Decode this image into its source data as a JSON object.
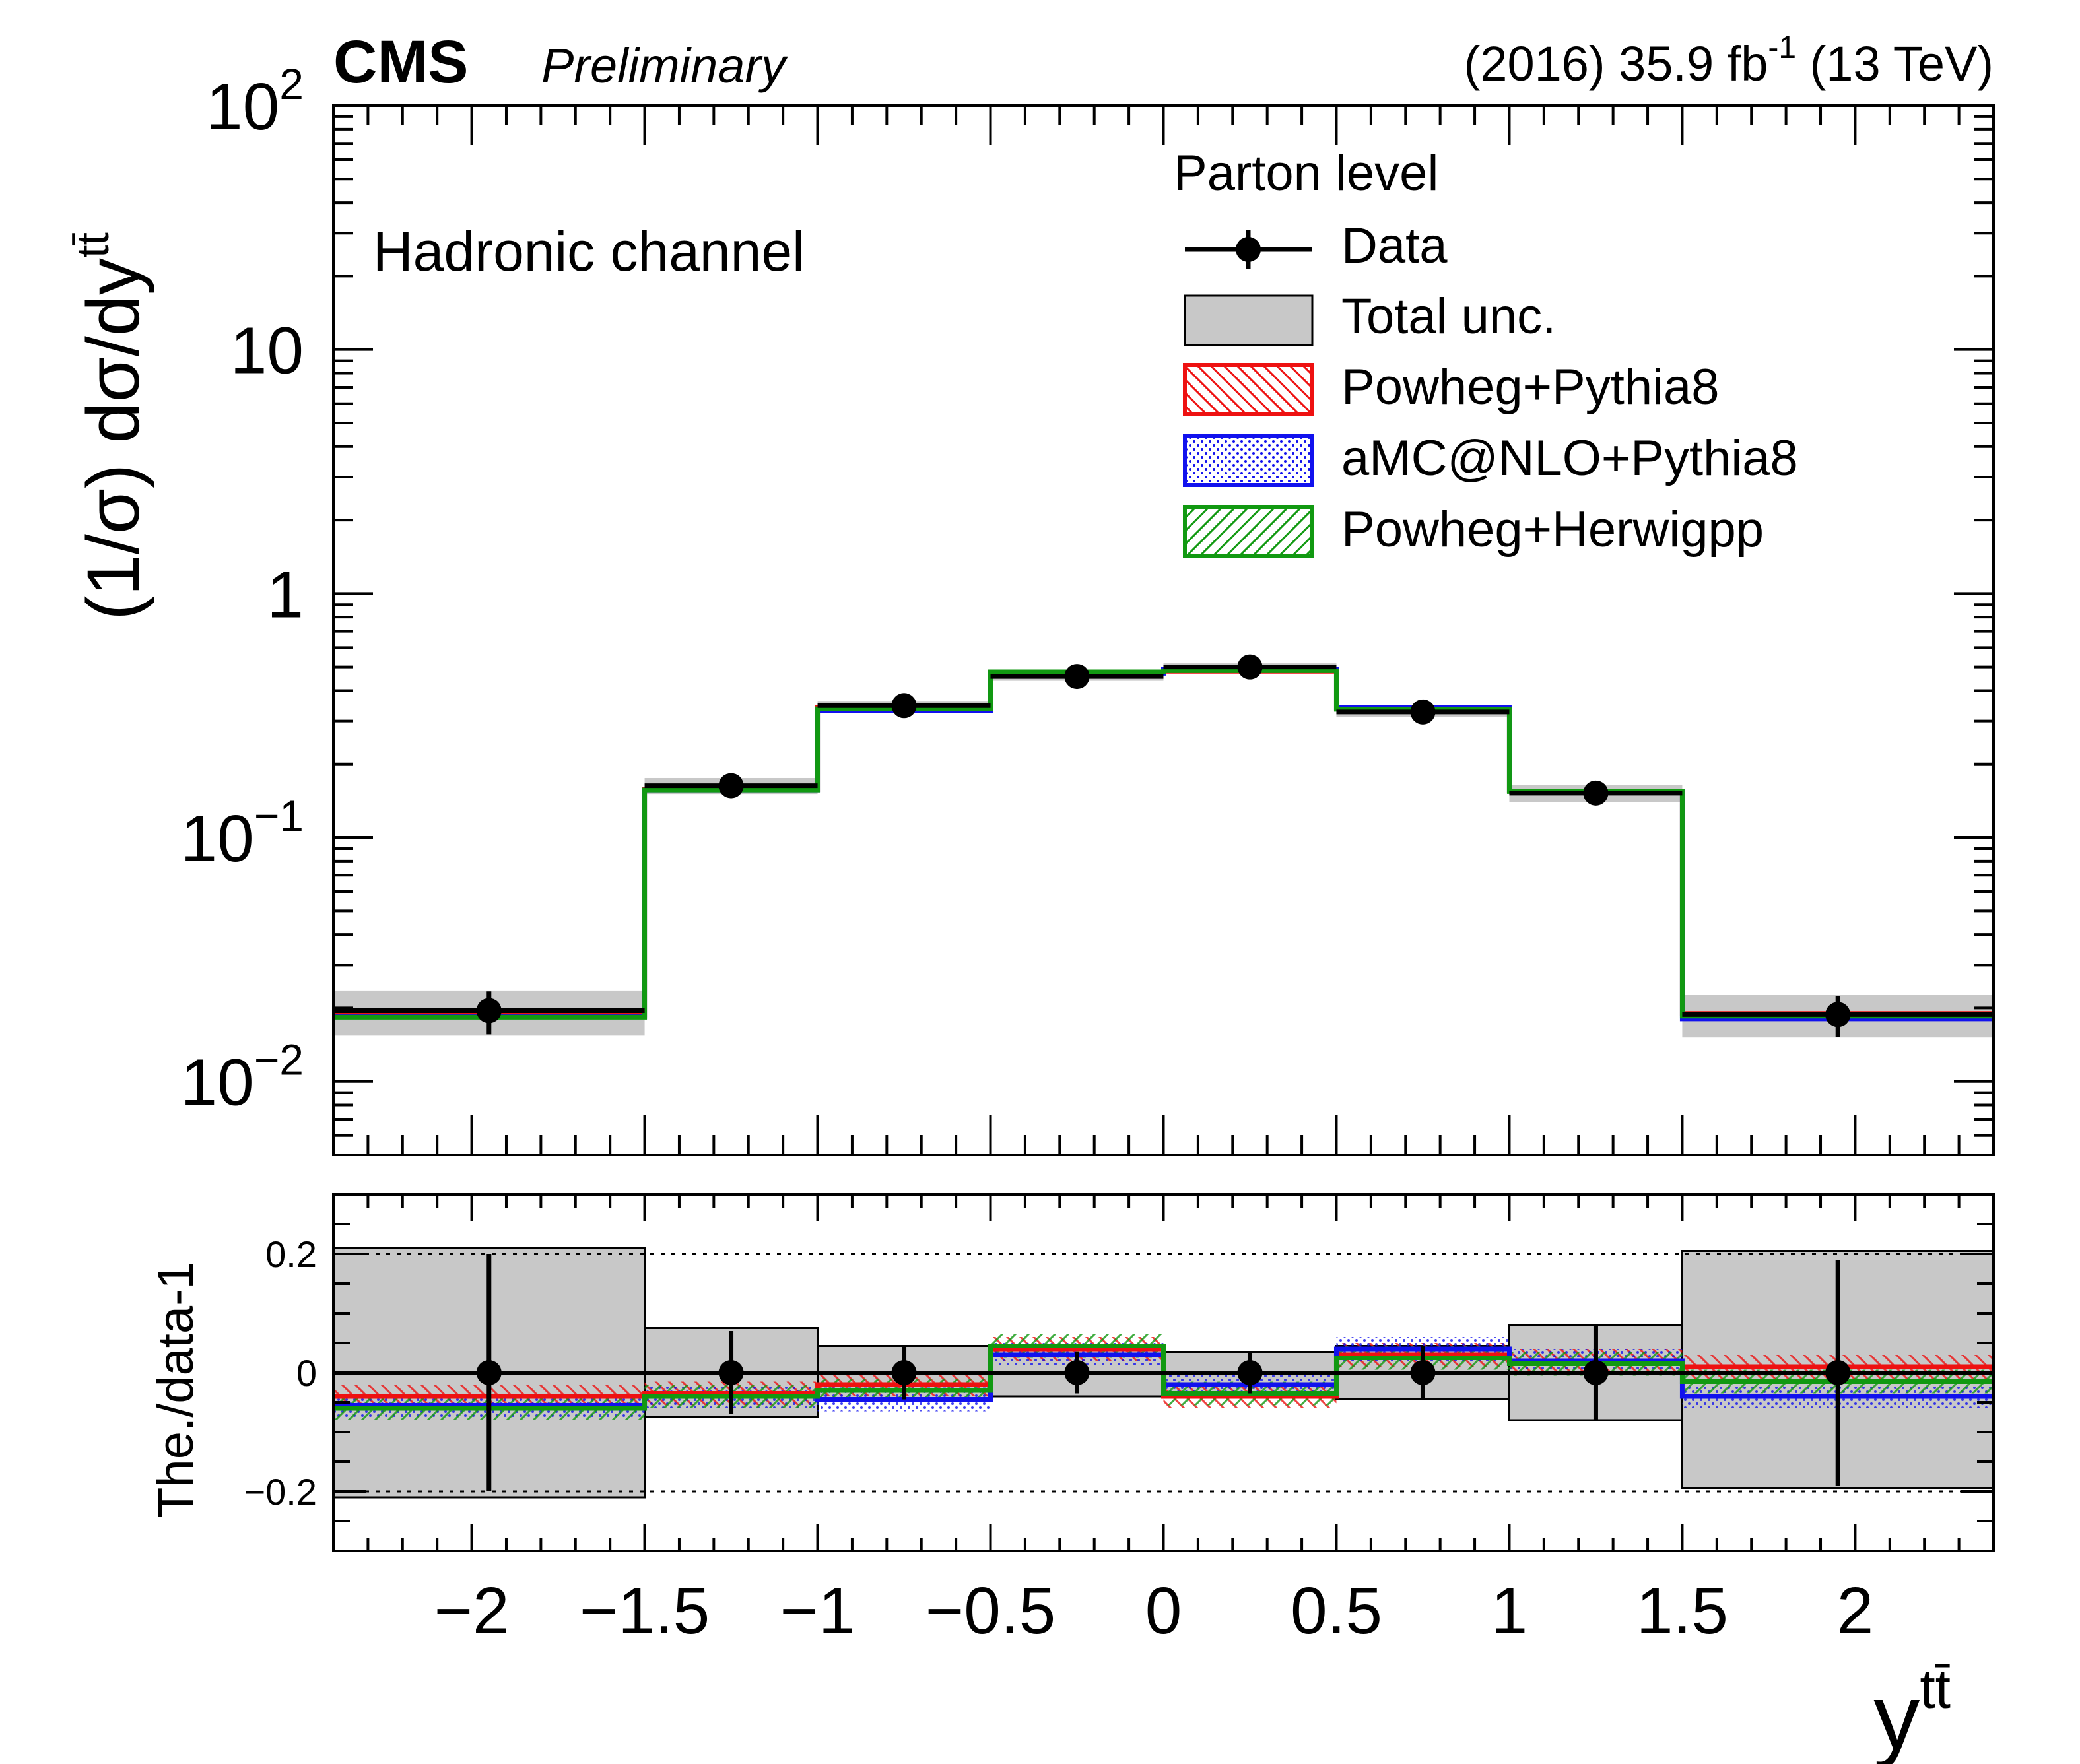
{
  "header": {
    "experiment": "CMS",
    "status": "Preliminary",
    "lumi_prefix": "(2016) 35.9 fb",
    "lumi_exp": "-1",
    "lumi_suffix": " (13 TeV)"
  },
  "channel_label": "Hadronic channel",
  "legend": {
    "title": "Parton level",
    "entries": [
      {
        "label": "Data"
      },
      {
        "label": "Total unc."
      },
      {
        "label": "Powheg+Pythia8"
      },
      {
        "label": "aMC@NLO+Pythia8"
      },
      {
        "label": "Powheg+Herwigpp"
      }
    ]
  },
  "colors": {
    "data": "#000000",
    "band": "#c8c8c8",
    "powheg_pythia8": "#ee1111",
    "amcnlo_pythia8": "#1111ee",
    "powheg_herwigpp": "#119911"
  },
  "axes": {
    "ylabel_main": "(1/σ) dσ/dy",
    "ylabel_sup": "tt̄",
    "ylabel_ratio": "The./data-1",
    "xlabel": "y",
    "xlabel_sup": "tt̄",
    "main_yticks": [
      {
        "base": "10",
        "exp": "2"
      },
      {
        "base": "10",
        "exp": ""
      },
      {
        "base": "1",
        "exp": ""
      },
      {
        "base": "10",
        "exp": "−1"
      },
      {
        "base": "10",
        "exp": "−2"
      }
    ],
    "ratio_yticks": [
      "0.2",
      "0",
      "−0.2"
    ],
    "xticks": [
      "−2",
      "−1.5",
      "−1",
      "−0.5",
      "0",
      "0.5",
      "1",
      "1.5",
      "2"
    ]
  },
  "chart_data": {
    "type": "line",
    "title": "CMS Preliminary",
    "xlabel": "y(tt̄)",
    "ylabel": "(1/σ) dσ/dy(tt̄)",
    "yscale": "log",
    "xlim": [
      -2.4,
      2.4
    ],
    "ylim": [
      0.005,
      100
    ],
    "ratio_ylim": [
      -0.3,
      0.3
    ],
    "bin_edges": [
      -2.4,
      -1.5,
      -1.0,
      -0.5,
      0.0,
      0.5,
      1.0,
      1.5,
      2.4
    ],
    "data": {
      "x": [
        -1.95,
        -1.25,
        -0.75,
        -0.25,
        0.25,
        0.75,
        1.25,
        1.95
      ],
      "y": [
        0.0195,
        0.163,
        0.347,
        0.457,
        0.5,
        0.327,
        0.152,
        0.0188
      ],
      "rel_err": [
        0.2,
        0.07,
        0.045,
        0.035,
        0.035,
        0.045,
        0.08,
        0.19
      ]
    },
    "total_unc_band": {
      "rel_up": [
        0.21,
        0.075,
        0.045,
        0.04,
        0.035,
        0.045,
        0.08,
        0.205
      ],
      "rel_down": [
        0.21,
        0.075,
        0.045,
        0.04,
        0.035,
        0.045,
        0.08,
        0.195
      ]
    },
    "series": [
      {
        "name": "Powheg+Pythia8",
        "ratio": [
          -0.04,
          -0.035,
          -0.02,
          0.04,
          -0.04,
          0.03,
          0.02,
          0.01
        ]
      },
      {
        "name": "aMC@NLO+Pythia8",
        "ratio": [
          -0.055,
          -0.04,
          -0.045,
          0.03,
          -0.02,
          0.04,
          0.02,
          -0.04
        ]
      },
      {
        "name": "Powheg+Herwigpp",
        "ratio": [
          -0.06,
          -0.04,
          -0.03,
          0.045,
          -0.035,
          0.025,
          0.015,
          -0.015
        ]
      }
    ]
  }
}
